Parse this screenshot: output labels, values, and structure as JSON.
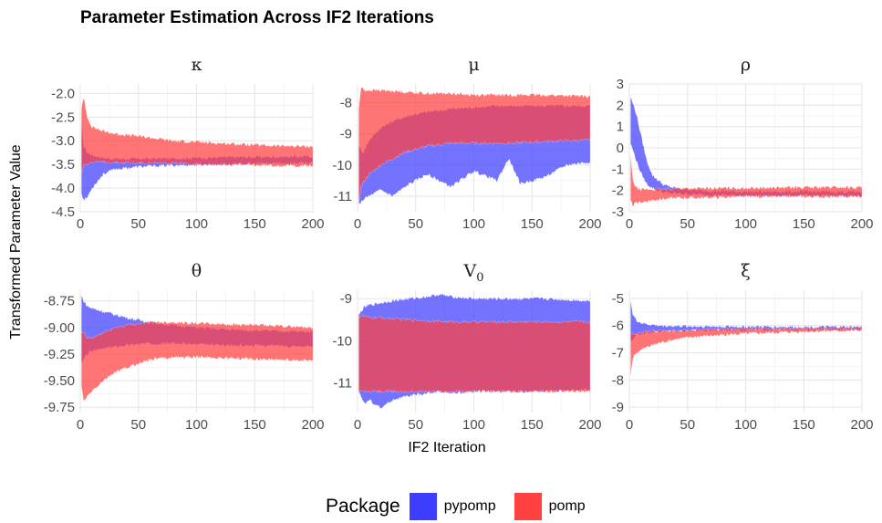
{
  "title": "Parameter Estimation Across IF2 Iterations",
  "ylabel": "Transformed Parameter Value",
  "xlabel": "IF2 Iteration",
  "legend": {
    "title": "Package",
    "items": [
      {
        "label": "pypomp",
        "color": "#3d3dff"
      },
      {
        "label": "pomp",
        "color": "#ff4040"
      }
    ],
    "placement": "bottom"
  },
  "chart_data": [
    {
      "type": "area",
      "title": "κ",
      "title_sub": "",
      "xlim": [
        0,
        200
      ],
      "xticks": [
        0,
        50,
        100,
        150,
        200
      ],
      "ylim": [
        -4.5,
        -1.8
      ],
      "yticks": [
        -4.5,
        -4.0,
        -3.5,
        -3.0,
        -2.5,
        -2.0
      ],
      "ytick_labels": [
        "-4.5",
        "-4.0",
        "-3.5",
        "-3.0",
        "-2.5",
        "-2.0"
      ],
      "series": [
        {
          "name": "pypomp",
          "x": [
            1,
            3,
            6,
            10,
            15,
            20,
            30,
            50,
            80,
            120,
            160,
            200
          ],
          "upper": [
            -2.6,
            -3.1,
            -3.25,
            -3.3,
            -3.33,
            -3.36,
            -3.38,
            -3.38,
            -3.37,
            -3.35,
            -3.34,
            -3.33
          ],
          "lower": [
            -4.1,
            -4.25,
            -4.2,
            -4.0,
            -3.85,
            -3.7,
            -3.6,
            -3.55,
            -3.52,
            -3.5,
            -3.48,
            -3.47
          ]
        },
        {
          "name": "pomp",
          "x": [
            1,
            3,
            6,
            10,
            15,
            20,
            30,
            50,
            80,
            120,
            160,
            200
          ],
          "upper": [
            -2.3,
            -2.1,
            -2.5,
            -2.7,
            -2.75,
            -2.8,
            -2.85,
            -2.9,
            -3.0,
            -3.05,
            -3.1,
            -3.12
          ],
          "lower": [
            -3.7,
            -3.5,
            -3.48,
            -3.46,
            -3.45,
            -3.45,
            -3.46,
            -3.47,
            -3.48,
            -3.5,
            -3.52,
            -3.53
          ]
        }
      ]
    },
    {
      "type": "area",
      "title": "μ",
      "title_sub": "",
      "xlim": [
        0,
        200
      ],
      "xticks": [
        0,
        50,
        100,
        150,
        200
      ],
      "ylim": [
        -11.5,
        -7.4
      ],
      "yticks": [
        -11,
        -10,
        -9,
        -8
      ],
      "ytick_labels": [
        "-11",
        "-10",
        "-9",
        "-8"
      ],
      "series": [
        {
          "name": "pypomp",
          "x": [
            1,
            5,
            10,
            20,
            30,
            45,
            60,
            80,
            100,
            120,
            130,
            140,
            160,
            180,
            200
          ],
          "upper": [
            -9.4,
            -9.6,
            -9.2,
            -8.8,
            -8.6,
            -8.4,
            -8.3,
            -8.2,
            -8.15,
            -8.1,
            -8.1,
            -8.1,
            -8.1,
            -8.1,
            -8.1
          ],
          "lower": [
            -11.3,
            -11.1,
            -11.0,
            -10.8,
            -11.0,
            -10.6,
            -10.3,
            -10.7,
            -10.2,
            -10.5,
            -9.8,
            -10.6,
            -10.4,
            -10.0,
            -9.9
          ]
        },
        {
          "name": "pomp",
          "x": [
            1,
            3,
            6,
            10,
            20,
            40,
            60,
            80,
            100,
            130,
            160,
            200
          ],
          "upper": [
            -8.2,
            -7.5,
            -7.6,
            -7.6,
            -7.6,
            -7.65,
            -7.7,
            -7.7,
            -7.75,
            -7.75,
            -7.75,
            -7.8
          ],
          "lower": [
            -11.2,
            -10.7,
            -10.5,
            -10.3,
            -10.0,
            -9.6,
            -9.4,
            -9.3,
            -9.3,
            -9.3,
            -9.25,
            -9.2
          ]
        }
      ]
    },
    {
      "type": "area",
      "title": "ρ",
      "title_sub": "",
      "xlim": [
        0,
        200
      ],
      "xticks": [
        0,
        50,
        100,
        150,
        200
      ],
      "ylim": [
        -3,
        3
      ],
      "yticks": [
        -3,
        -2,
        -1,
        0,
        1,
        2,
        3
      ],
      "ytick_labels": [
        "-3",
        "-2",
        "-1",
        "0",
        "1",
        "2",
        "3"
      ],
      "series": [
        {
          "name": "pypomp",
          "x": [
            1,
            3,
            6,
            10,
            15,
            20,
            30,
            40,
            60,
            100,
            150,
            200
          ],
          "upper": [
            2.4,
            2.1,
            1.6,
            0.6,
            -0.6,
            -1.3,
            -1.75,
            -1.9,
            -2.0,
            -2.05,
            -2.05,
            -2.05
          ],
          "lower": [
            0.2,
            -0.1,
            -0.6,
            -1.2,
            -1.7,
            -1.9,
            -2.1,
            -2.15,
            -2.2,
            -2.25,
            -2.25,
            -2.25
          ]
        },
        {
          "name": "pomp",
          "x": [
            1,
            3,
            6,
            10,
            15,
            20,
            30,
            40,
            60,
            100,
            150,
            200
          ],
          "upper": [
            -0.3,
            -1.5,
            -1.9,
            -1.95,
            -1.95,
            -1.95,
            -1.95,
            -1.9,
            -1.9,
            -1.88,
            -1.85,
            -1.85
          ],
          "lower": [
            -2.5,
            -2.7,
            -2.6,
            -2.55,
            -2.5,
            -2.45,
            -2.4,
            -2.35,
            -2.35,
            -2.3,
            -2.3,
            -2.3
          ]
        }
      ]
    },
    {
      "type": "area",
      "title": "θ",
      "title_sub": "",
      "xlim": [
        0,
        200
      ],
      "xticks": [
        0,
        50,
        100,
        150,
        200
      ],
      "ylim": [
        -9.8,
        -8.65
      ],
      "yticks": [
        -9.75,
        -9.5,
        -9.25,
        -9.0,
        -8.75
      ],
      "ytick_labels": [
        "-9.75",
        "-9.50",
        "-9.25",
        "-9.00",
        "-8.75"
      ],
      "series": [
        {
          "name": "pypomp",
          "x": [
            1,
            3,
            6,
            10,
            20,
            30,
            45,
            60,
            80,
            100,
            130,
            160,
            200
          ],
          "upper": [
            -8.7,
            -8.75,
            -8.8,
            -8.82,
            -8.85,
            -8.88,
            -8.92,
            -8.95,
            -8.98,
            -9.0,
            -9.02,
            -9.03,
            -9.04
          ],
          "lower": [
            -9.35,
            -9.3,
            -9.25,
            -9.22,
            -9.2,
            -9.18,
            -9.16,
            -9.15,
            -9.15,
            -9.16,
            -9.17,
            -9.17,
            -9.18
          ]
        },
        {
          "name": "pomp",
          "x": [
            1,
            3,
            6,
            10,
            20,
            30,
            45,
            60,
            80,
            100,
            130,
            160,
            200
          ],
          "upper": [
            -9.05,
            -9.05,
            -9.1,
            -9.1,
            -9.05,
            -9.0,
            -8.97,
            -8.95,
            -8.95,
            -8.96,
            -8.97,
            -8.98,
            -9.0
          ],
          "lower": [
            -9.55,
            -9.7,
            -9.65,
            -9.6,
            -9.5,
            -9.42,
            -9.36,
            -9.3,
            -9.28,
            -9.28,
            -9.29,
            -9.3,
            -9.31
          ]
        }
      ]
    },
    {
      "type": "area",
      "title": "V",
      "title_sub": "0",
      "xlim": [
        0,
        200
      ],
      "xticks": [
        0,
        50,
        100,
        150,
        200
      ],
      "ylim": [
        -11.7,
        -8.8
      ],
      "yticks": [
        -11,
        -10,
        -9
      ],
      "ytick_labels": [
        "-11",
        "-10",
        "-9"
      ],
      "series": [
        {
          "name": "pypomp",
          "x": [
            1,
            3,
            6,
            10,
            20,
            30,
            45,
            60,
            70,
            80,
            100,
            130,
            160,
            200
          ],
          "upper": [
            -9.4,
            -9.3,
            -9.2,
            -9.15,
            -9.1,
            -9.05,
            -9.0,
            -8.95,
            -8.9,
            -8.95,
            -9.0,
            -9.0,
            -9.0,
            -9.05
          ],
          "lower": [
            -11.2,
            -11.3,
            -11.5,
            -11.4,
            -11.6,
            -11.4,
            -11.3,
            -11.25,
            -11.2,
            -11.25,
            -11.2,
            -11.2,
            -11.2,
            -11.15
          ]
        },
        {
          "name": "pomp",
          "x": [
            1,
            3,
            6,
            10,
            20,
            30,
            45,
            60,
            80,
            100,
            130,
            160,
            200
          ],
          "upper": [
            -9.45,
            -9.4,
            -9.42,
            -9.45,
            -9.45,
            -9.48,
            -9.5,
            -9.52,
            -9.55,
            -9.55,
            -9.55,
            -9.55,
            -9.55
          ],
          "lower": [
            -11.2,
            -11.2,
            -11.2,
            -11.2,
            -11.2,
            -11.2,
            -11.2,
            -11.2,
            -11.2,
            -11.2,
            -11.2,
            -11.2,
            -11.2
          ]
        }
      ]
    },
    {
      "type": "area",
      "title": "ξ",
      "title_sub": "",
      "xlim": [
        0,
        200
      ],
      "xticks": [
        0,
        50,
        100,
        150,
        200
      ],
      "ylim": [
        -9.2,
        -4.7
      ],
      "yticks": [
        -9,
        -8,
        -7,
        -6,
        -5
      ],
      "ytick_labels": [
        "-9",
        "-8",
        "-7",
        "-6",
        "-5"
      ],
      "series": [
        {
          "name": "pypomp",
          "x": [
            1,
            3,
            6,
            10,
            15,
            25,
            40,
            60,
            100,
            150,
            200
          ],
          "upper": [
            -5.0,
            -5.6,
            -5.8,
            -5.9,
            -5.95,
            -6.0,
            -6.02,
            -6.03,
            -6.04,
            -6.05,
            -6.05
          ],
          "lower": [
            -6.6,
            -6.5,
            -6.35,
            -6.3,
            -6.25,
            -6.22,
            -6.2,
            -6.18,
            -6.16,
            -6.15,
            -6.14
          ]
        },
        {
          "name": "pomp",
          "x": [
            1,
            3,
            6,
            10,
            15,
            25,
            40,
            60,
            100,
            150,
            200
          ],
          "upper": [
            -6.3,
            -6.3,
            -6.28,
            -6.25,
            -6.22,
            -6.2,
            -6.18,
            -6.15,
            -6.12,
            -6.1,
            -6.08
          ],
          "lower": [
            -7.9,
            -7.2,
            -7.0,
            -6.9,
            -6.8,
            -6.65,
            -6.5,
            -6.4,
            -6.3,
            -6.22,
            -6.18
          ]
        }
      ]
    }
  ]
}
